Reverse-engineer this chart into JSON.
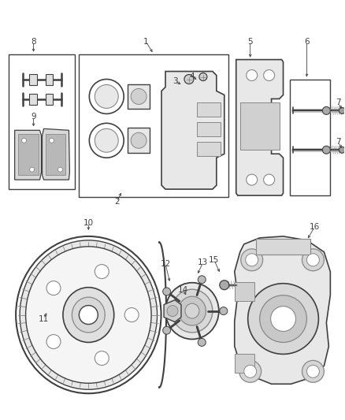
{
  "bg_color": "#ffffff",
  "lc": "#404040",
  "mg": "#888888",
  "lg": "#bbbbbb",
  "fig_width": 4.38,
  "fig_height": 5.33,
  "dpi": 100
}
